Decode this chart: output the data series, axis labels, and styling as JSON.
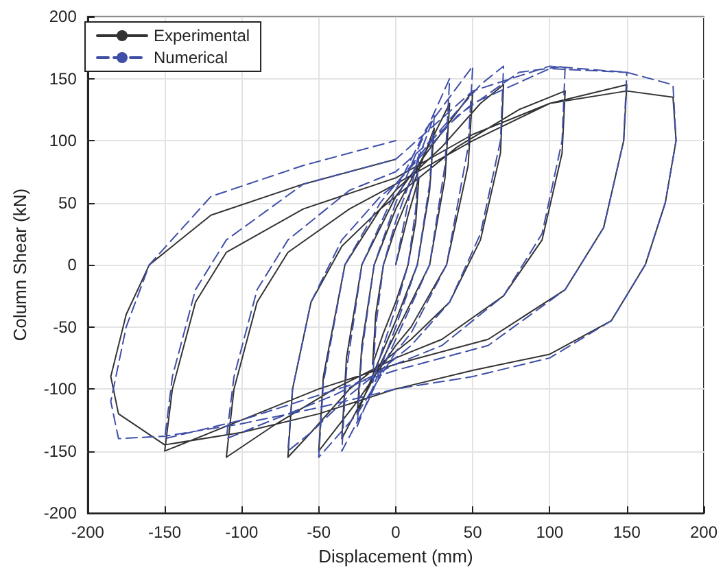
{
  "chart_data": {
    "type": "line",
    "xlabel": "Displacement (mm)",
    "ylabel": "Column Shear (kN)",
    "xlim": [
      -200,
      200
    ],
    "xticks": [
      -200,
      -150,
      -100,
      -50,
      0,
      50,
      100,
      150,
      200
    ],
    "ylim": [
      -200,
      200
    ],
    "yticks": [
      -200,
      -150,
      -100,
      -50,
      0,
      50,
      100,
      150,
      200
    ],
    "grid": true,
    "legend": "top left",
    "marker": "none",
    "series": [
      {
        "name": "Experimental",
        "color": "#333333",
        "line_style": "solid",
        "x": [
          0,
          8,
          15,
          13,
          8,
          0,
          -8,
          -15,
          -13,
          -8,
          0,
          10,
          25,
          22,
          14,
          0,
          -12,
          -25,
          -22,
          -14,
          0,
          15,
          35,
          32,
          22,
          0,
          -18,
          -35,
          -32,
          -22,
          0,
          20,
          50,
          47,
          33,
          10,
          0,
          -25,
          -50,
          -47,
          -33,
          -10,
          0,
          30,
          55,
          70,
          68,
          55,
          35,
          10,
          0,
          -30,
          -55,
          -70,
          -67,
          -55,
          -35,
          -10,
          0,
          40,
          80,
          110,
          108,
          95,
          70,
          30,
          0,
          -40,
          -80,
          -110,
          -105,
          -90,
          -70,
          -30,
          0,
          50,
          100,
          150,
          148,
          135,
          110,
          60,
          0,
          -50,
          -100,
          -150,
          -145,
          -130,
          -110,
          -60,
          0,
          50,
          100,
          150,
          180,
          182,
          175,
          162,
          140,
          100,
          50,
          0,
          -50,
          -100,
          -150,
          -180,
          -185,
          -175,
          -160,
          -120,
          -60,
          0
        ],
        "values": [
          0,
          40,
          70,
          35,
          0,
          -30,
          -55,
          -80,
          -40,
          0,
          30,
          60,
          110,
          60,
          0,
          -45,
          -80,
          -120,
          -65,
          0,
          45,
          80,
          130,
          70,
          0,
          -55,
          -100,
          -140,
          -75,
          0,
          55,
          90,
          140,
          80,
          0,
          -50,
          -65,
          -110,
          -150,
          -90,
          0,
          45,
          60,
          95,
          130,
          145,
          90,
          20,
          -30,
          -60,
          -70,
          -100,
          -135,
          -155,
          -100,
          -30,
          15,
          45,
          55,
          95,
          125,
          140,
          90,
          20,
          -25,
          -60,
          -75,
          -100,
          -130,
          -155,
          -100,
          -30,
          10,
          45,
          65,
          100,
          130,
          145,
          100,
          30,
          -20,
          -60,
          -80,
          -100,
          -125,
          -150,
          -100,
          -30,
          10,
          45,
          70,
          105,
          130,
          140,
          135,
          100,
          50,
          0,
          -45,
          -72,
          -85,
          -100,
          -120,
          -135,
          -145,
          -120,
          -90,
          -40,
          0,
          40,
          65,
          85
        ]
      },
      {
        "name": "Numerical",
        "color": "#3f4fa8",
        "line_style": "dashed",
        "x": [
          0,
          8,
          15,
          13,
          8,
          0,
          -8,
          -15,
          -13,
          -8,
          0,
          10,
          25,
          22,
          14,
          0,
          -12,
          -25,
          -22,
          -14,
          0,
          15,
          35,
          32,
          22,
          0,
          -18,
          -35,
          -32,
          -22,
          0,
          20,
          50,
          47,
          33,
          10,
          0,
          -25,
          -50,
          -47,
          -33,
          -10,
          0,
          30,
          55,
          70,
          68,
          55,
          35,
          10,
          0,
          -30,
          -55,
          -70,
          -67,
          -55,
          -35,
          -10,
          0,
          40,
          80,
          110,
          108,
          95,
          70,
          30,
          0,
          -40,
          -80,
          -110,
          -105,
          -90,
          -70,
          -30,
          0,
          50,
          100,
          150,
          148,
          135,
          110,
          60,
          0,
          -50,
          -100,
          -150,
          -145,
          -130,
          -110,
          -60,
          0,
          50,
          100,
          150,
          180,
          182,
          175,
          162,
          140,
          100,
          50,
          0,
          -50,
          -100,
          -150,
          -180,
          -185,
          -175,
          -160,
          -120,
          -60,
          0
        ],
        "values": [
          0,
          50,
          90,
          45,
          0,
          -35,
          -65,
          -95,
          -50,
          0,
          35,
          70,
          120,
          65,
          0,
          -50,
          -90,
          -130,
          -70,
          0,
          50,
          95,
          150,
          80,
          0,
          -60,
          -110,
          -150,
          -85,
          0,
          60,
          110,
          160,
          95,
          0,
          -55,
          -70,
          -120,
          -155,
          -95,
          0,
          50,
          65,
          110,
          145,
          160,
          100,
          25,
          -30,
          -65,
          -75,
          -105,
          -135,
          -150,
          -100,
          -30,
          20,
          55,
          65,
          120,
          155,
          160,
          100,
          25,
          -25,
          -65,
          -80,
          -105,
          -125,
          -140,
          -90,
          -20,
          20,
          60,
          75,
          130,
          158,
          155,
          100,
          30,
          -20,
          -65,
          -85,
          -105,
          -125,
          -140,
          -90,
          -20,
          20,
          65,
          85,
          140,
          160,
          155,
          145,
          100,
          50,
          0,
          -45,
          -75,
          -90,
          -100,
          -115,
          -128,
          -138,
          -140,
          -110,
          -50,
          0,
          55,
          80,
          100
        ]
      }
    ]
  }
}
